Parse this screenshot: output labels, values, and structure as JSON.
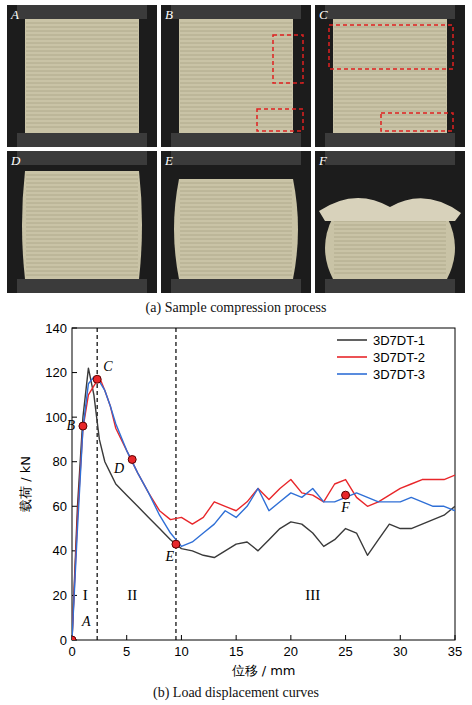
{
  "photos": {
    "labels": [
      "A",
      "B",
      "C",
      "D",
      "E",
      "F"
    ],
    "caption": "(a) Sample compression process"
  },
  "chart_data": {
    "type": "line",
    "title": "(b) Load displacement curves",
    "x_label": "位移 / mm",
    "y_label": "载荷 / kN",
    "x": [
      0,
      0.5,
      1,
      1.5,
      2,
      2.5,
      3,
      3.5,
      4,
      5,
      6,
      7,
      8,
      9,
      10,
      11,
      12,
      13,
      14,
      15,
      16,
      17,
      18,
      19,
      20,
      21,
      22,
      23,
      24,
      25,
      26,
      27,
      28,
      29,
      30,
      31,
      32,
      33,
      34,
      35
    ],
    "series": [
      {
        "name": "3D7DT-1",
        "color": "#3a3a3a",
        "values": [
          0,
          60,
          100,
          122,
          110,
          90,
          80,
          75,
          70,
          65,
          60,
          55,
          50,
          45,
          41,
          40,
          38,
          37,
          40,
          43,
          44,
          40,
          45,
          50,
          53,
          52,
          48,
          42,
          45,
          50,
          48,
          38,
          45,
          52,
          50,
          50,
          52,
          54,
          56,
          60
        ]
      },
      {
        "name": "3D7DT-2",
        "color": "#e8262a",
        "values": [
          0,
          55,
          95,
          110,
          114,
          118,
          112,
          105,
          95,
          85,
          75,
          66,
          58,
          54,
          55,
          52,
          55,
          62,
          60,
          58,
          62,
          68,
          63,
          68,
          72,
          66,
          65,
          62,
          70,
          72,
          64,
          60,
          62,
          65,
          68,
          70,
          72,
          72,
          72,
          74
        ]
      },
      {
        "name": "3D7DT-3",
        "color": "#2f6fd6",
        "values": [
          0,
          50,
          95,
          115,
          118,
          116,
          112,
          105,
          97,
          85,
          75,
          66,
          56,
          48,
          42,
          44,
          48,
          52,
          58,
          55,
          60,
          68,
          58,
          62,
          66,
          64,
          68,
          62,
          62,
          64,
          66,
          64,
          62,
          62,
          62,
          64,
          62,
          60,
          60,
          58
        ]
      }
    ],
    "xlim": [
      0,
      35
    ],
    "xticks": [
      0,
      5,
      10,
      15,
      20,
      25,
      30,
      35
    ],
    "ylim": [
      0,
      140
    ],
    "yticks": [
      0,
      20,
      40,
      60,
      80,
      100,
      120,
      140
    ],
    "legend": "upper right",
    "points": [
      {
        "label": "A",
        "x": 0,
        "y": 0
      },
      {
        "label": "B",
        "x": 1,
        "y": 96
      },
      {
        "label": "C",
        "x": 2.3,
        "y": 117
      },
      {
        "label": "D",
        "x": 5.5,
        "y": 81
      },
      {
        "label": "E",
        "x": 9.5,
        "y": 43
      },
      {
        "label": "F",
        "x": 25,
        "y": 65
      }
    ],
    "stage_boundaries": [
      2.3,
      9.5
    ],
    "annotations": [
      {
        "text": "I",
        "x": 1.2,
        "y": 18
      },
      {
        "text": "II",
        "x": 5.5,
        "y": 18
      },
      {
        "text": "III",
        "x": 22,
        "y": 18
      }
    ]
  }
}
